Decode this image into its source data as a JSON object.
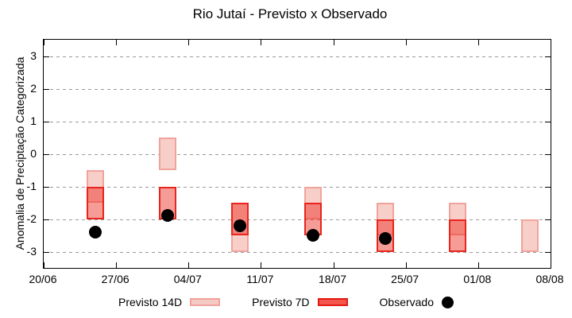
{
  "title": "Rio Jutaí - Previsto x Observado",
  "legend": {
    "items": [
      {
        "label": "Previsto 14D",
        "swatch": "light-pink-box"
      },
      {
        "label": "Previsto 7D",
        "swatch": "red-box"
      },
      {
        "label": "Observado",
        "swatch": "black-dot"
      }
    ]
  },
  "colors": {
    "previsto_14d_fill": "#f8cec8",
    "previsto_14d_border": "#f0a39c",
    "previsto_7d_fill": "#f4564e",
    "previsto_7d_border": "#e8251c",
    "observado": "#000000",
    "grid": "#9a9a9a",
    "frame": "#000000"
  },
  "chart_data": {
    "type": "bar",
    "subtype": "range-candlestick-with-points",
    "title": "Rio Jutaí - Previsto x Observado",
    "xlabel": "",
    "ylabel": "Anomalia de Preciptação Categorizada",
    "grid": "horizontal-dashed",
    "legend_position": "bottom-center",
    "ylim": [
      -3.5,
      3.5
    ],
    "xlim_days": [
      0,
      49
    ],
    "y_ticks": [
      3,
      2,
      1,
      0,
      -1,
      -2,
      -3
    ],
    "x_ticks": [
      {
        "day": 0,
        "label": "20/06"
      },
      {
        "day": 7,
        "label": "27/06"
      },
      {
        "day": 14,
        "label": "04/07"
      },
      {
        "day": 21,
        "label": "11/07"
      },
      {
        "day": 28,
        "label": "18/07"
      },
      {
        "day": 35,
        "label": "25/07"
      },
      {
        "day": 42,
        "label": "01/08"
      },
      {
        "day": 49,
        "label": "08/08"
      }
    ],
    "series": [
      {
        "name": "Previsto 14D",
        "type": "range-box"
      },
      {
        "name": "Previsto 7D",
        "type": "range-box"
      },
      {
        "name": "Observado",
        "type": "point"
      }
    ],
    "points": [
      {
        "date": "25/06",
        "day": 5,
        "previsto_14d": [
          -0.5,
          -1.5
        ],
        "previsto_7d": [
          -1.0,
          -2.0
        ],
        "observado": -2.4
      },
      {
        "date": "02/07",
        "day": 12,
        "previsto_14d": [
          0.5,
          -0.5
        ],
        "previsto_7d": [
          -1.0,
          -2.0
        ],
        "observado": -1.9
      },
      {
        "date": "09/07",
        "day": 19,
        "previsto_14d": [
          -1.5,
          -3.0
        ],
        "previsto_7d": [
          -1.5,
          -2.5
        ],
        "observado": -2.2
      },
      {
        "date": "16/07",
        "day": 26,
        "previsto_14d": [
          -1.0,
          -2.0
        ],
        "previsto_7d": [
          -1.5,
          -2.5
        ],
        "observado": -2.5
      },
      {
        "date": "23/07",
        "day": 33,
        "previsto_14d": [
          -1.5,
          -2.5
        ],
        "previsto_7d": [
          -2.0,
          -3.0
        ],
        "observado": -2.6
      },
      {
        "date": "30/07",
        "day": 40,
        "previsto_14d": [
          -1.5,
          -2.5
        ],
        "previsto_7d": [
          -2.0,
          -3.0
        ],
        "observado": null
      },
      {
        "date": "06/08",
        "day": 47,
        "previsto_14d": [
          -2.0,
          -3.0
        ],
        "previsto_7d": null,
        "observado": null
      }
    ]
  }
}
